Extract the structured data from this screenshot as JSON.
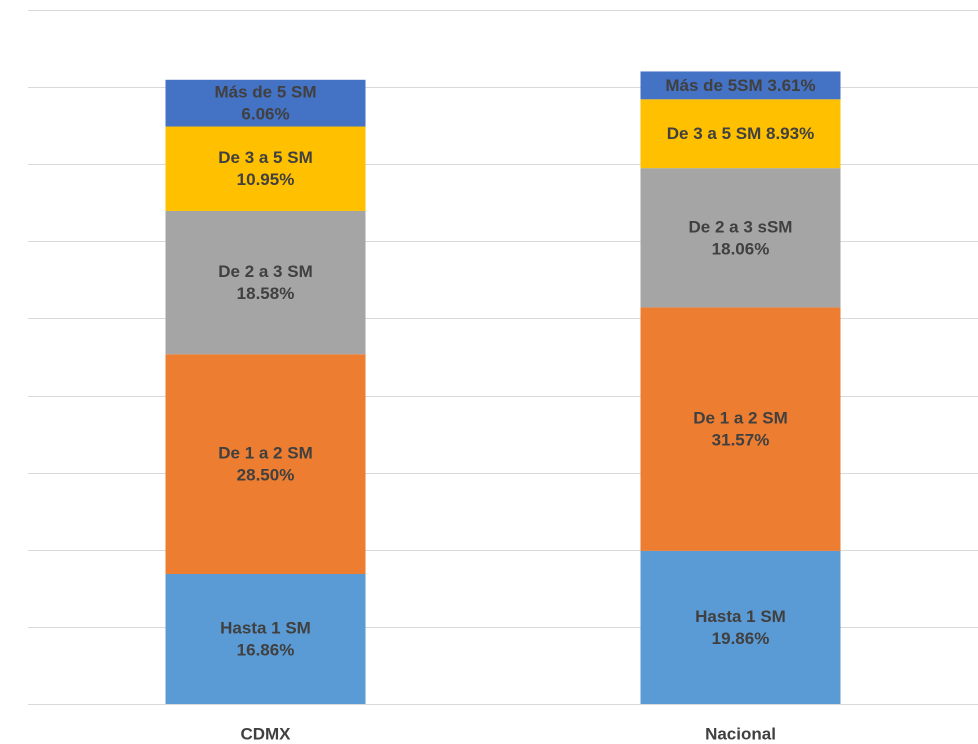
{
  "chart_data": {
    "type": "bar",
    "stacked": true,
    "title": "",
    "xlabel": "",
    "ylabel": "",
    "ylim": [
      0,
      90
    ],
    "grid": true,
    "categories": [
      "CDMX",
      "Nacional"
    ],
    "series": [
      {
        "key": "hasta1",
        "color": "#5B9BD5",
        "text_color": "#404040",
        "values": [
          16.86,
          19.86
        ],
        "labels": [
          [
            "Hasta 1 SM",
            "16.86%"
          ],
          [
            "Hasta 1 SM",
            "19.86%"
          ]
        ]
      },
      {
        "key": "de1a2",
        "color": "#ED7D31",
        "text_color": "#404040",
        "values": [
          28.5,
          31.57
        ],
        "labels": [
          [
            "De 1 a 2 SM",
            "28.50%"
          ],
          [
            "De 1 a 2 SM",
            "31.57%"
          ]
        ]
      },
      {
        "key": "de2a3",
        "color": "#A5A5A5",
        "text_color": "#404040",
        "values": [
          18.58,
          18.06
        ],
        "labels": [
          [
            "De 2 a 3 SM",
            "18.58%"
          ],
          [
            "De 2 a 3 sSM",
            "18.06%"
          ]
        ]
      },
      {
        "key": "de3a5",
        "color": "#FFC000",
        "text_color": "#404040",
        "values": [
          10.95,
          8.93
        ],
        "labels": [
          [
            "De 3 a 5 SM",
            "10.95%"
          ],
          [
            "De 3 a 5 SM 8.93%"
          ]
        ]
      },
      {
        "key": "mas5",
        "color": "#4472C4",
        "text_color": "#404040",
        "values": [
          6.06,
          3.61
        ],
        "labels": [
          [
            "Más de 5 SM",
            "6.06%"
          ],
          [
            "Más de 5SM 3.61%"
          ]
        ]
      }
    ]
  }
}
